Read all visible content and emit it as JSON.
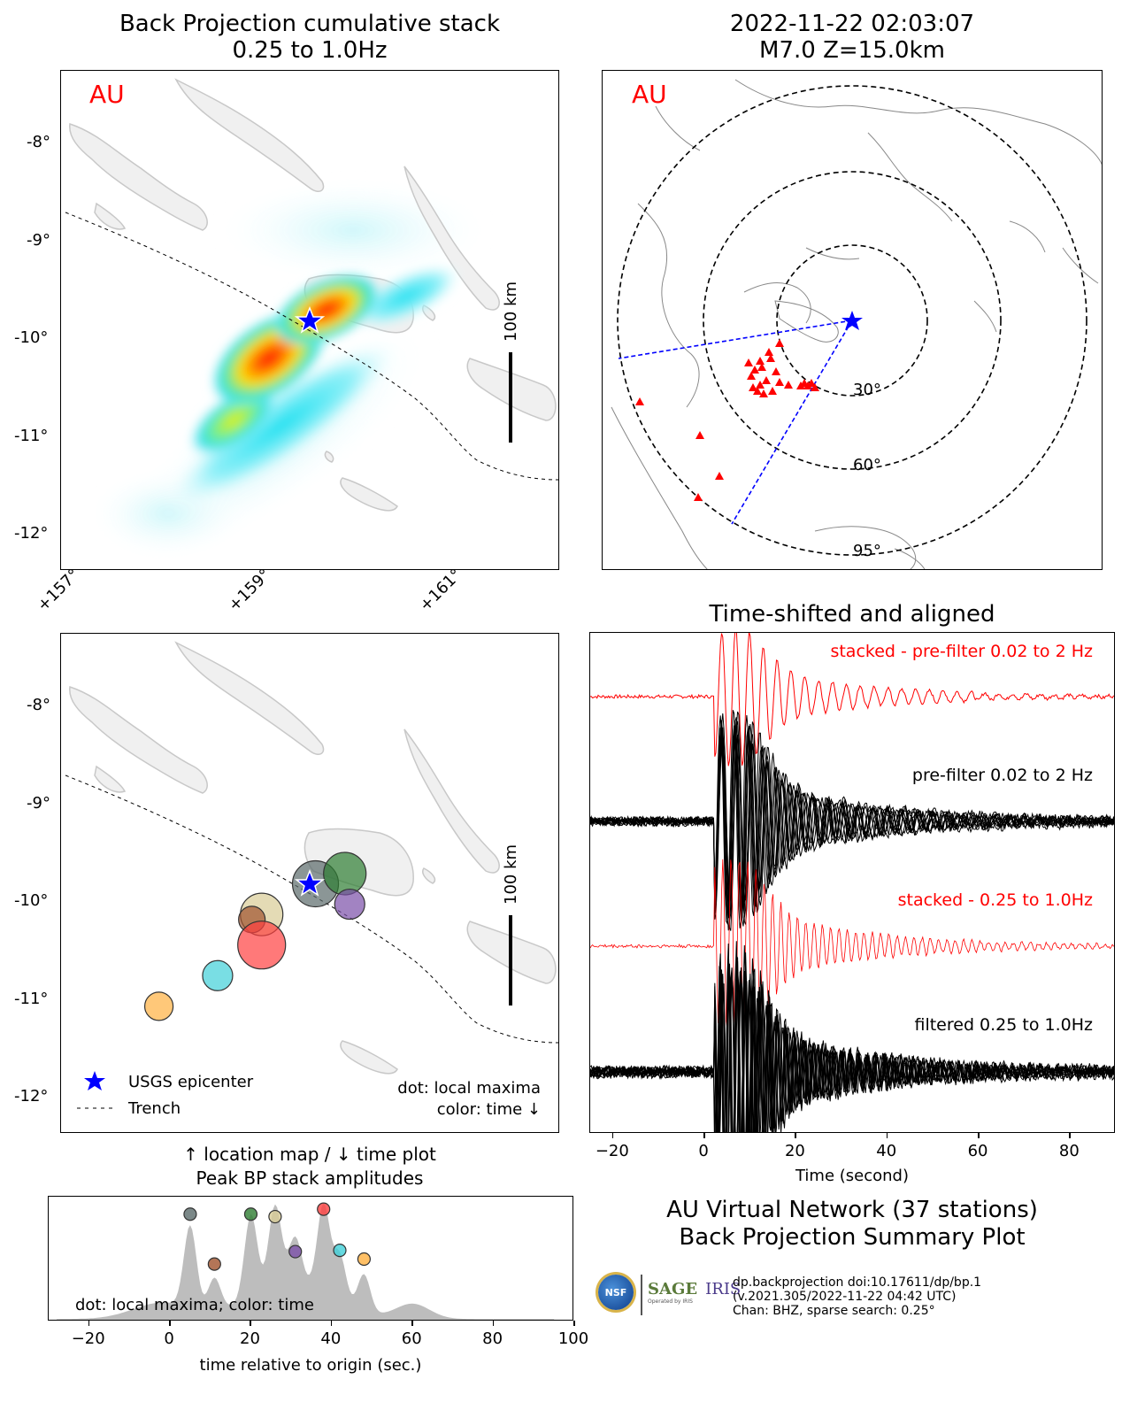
{
  "top_left": {
    "title_line1": "Back Projection cumulative stack",
    "title_line2": "0.25 to 1.0Hz",
    "network_tag": "AU",
    "scale_label": "100 km"
  },
  "top_right": {
    "title_line1": "2022-11-22 02:03:07",
    "title_line2": "M7.0 Z=15.0km",
    "network_tag": "AU",
    "ring_labels": [
      "30°",
      "60°",
      "95°"
    ]
  },
  "lat_ticks": [
    "-8°",
    "-9°",
    "-10°",
    "-11°",
    "-12°"
  ],
  "lon_ticks": [
    "+157°",
    "+159°",
    "+161°"
  ],
  "mid_left": {
    "scale_label": "100 km",
    "legend_epicenter": "USGS epicenter",
    "legend_trench": "Trench",
    "note_line1": "dot: local maxima",
    "note_line2": "color: time ↓",
    "caption_line1": "↑ location map / ↓ time plot",
    "caption_line2": "Peak BP stack amplitudes"
  },
  "waveforms": {
    "title": "Time-shifted and aligned",
    "trace_labels": [
      "stacked - pre-filter 0.02 to 2 Hz",
      "pre-filter 0.02 to 2 Hz",
      "stacked - 0.25 to 1.0Hz",
      "filtered 0.25 to 1.0Hz"
    ],
    "xlabel": "Time (second)",
    "xticks": [
      "−20",
      "0",
      "20",
      "40",
      "60",
      "80"
    ]
  },
  "summary": {
    "line1": "AU Virtual Network (37 stations)",
    "line2": "Back Projection Summary Plot"
  },
  "footer": {
    "logo_nsf": "NSF",
    "logo_sage": "SAGE",
    "logo_iris": "IRIS",
    "logo_sub": "Operated by IRIS",
    "line1": "dp.backprojection doi:10.17611/dp/bp.1",
    "line2": "(v.2021.305/2022-11-22 04:42 UTC)",
    "line3": "Chan: BHZ, sparse search: 0.25°"
  },
  "colors": {
    "epicenter": "#0000ff",
    "accent": "#ff0000",
    "land": "#f0f0f0",
    "coast": "#c8c8c8"
  },
  "chart_data": [
    {
      "type": "heatmap",
      "title": "Back Projection cumulative stack 0.25 to 1.0Hz",
      "xlim": [
        156.9,
        162.0
      ],
      "ylim": [
        -12.3,
        -7.4
      ],
      "epicenter": {
        "lon": 159.5,
        "lat": -9.83
      },
      "peaks": [
        {
          "lon": 159.7,
          "lat": -9.8,
          "value": 1.0
        },
        {
          "lon": 159.05,
          "lat": -10.2,
          "value": 0.95
        },
        {
          "lon": 158.5,
          "lat": -10.6,
          "value": 0.55
        },
        {
          "lon": 157.9,
          "lat": -11.0,
          "value": 0.4
        },
        {
          "lon": 160.3,
          "lat": -9.4,
          "value": 0.35
        }
      ]
    },
    {
      "type": "scatter",
      "title": "2022-11-22 02:03:07 M7.0 Z=15.0km",
      "ring_distances_deg": [
        30,
        60,
        95
      ]
    },
    {
      "type": "scatter",
      "title": "location map",
      "xlim": [
        156.9,
        162.0
      ],
      "ylim": [
        -12.3,
        -7.4
      ],
      "points": [
        {
          "lon": 159.5,
          "lat": -9.85,
          "color": "#5a6a6a",
          "size": 26
        },
        {
          "lon": 159.8,
          "lat": -9.75,
          "color": "#2e7d32",
          "size": 24
        },
        {
          "lon": 159.85,
          "lat": -10.05,
          "color": "#7b4fa8",
          "size": 17
        },
        {
          "lon": 158.95,
          "lat": -10.15,
          "color": "#d8cc96",
          "size": 24
        },
        {
          "lon": 158.85,
          "lat": -10.2,
          "color": "#a0522d",
          "size": 15
        },
        {
          "lon": 158.95,
          "lat": -10.45,
          "color": "#ff4040",
          "size": 27
        },
        {
          "lon": 158.5,
          "lat": -10.75,
          "color": "#40d0d8",
          "size": 17
        },
        {
          "lon": 157.9,
          "lat": -11.05,
          "color": "#ffb040",
          "size": 16
        }
      ]
    },
    {
      "type": "area",
      "title": "Peak BP stack amplitudes",
      "xlabel": "time relative to origin (sec.)",
      "xlim": [
        -30,
        100
      ],
      "xticks": [
        -20,
        0,
        20,
        40,
        60,
        80,
        100
      ],
      "annotation": "dot: local maxima; color: time",
      "peak_dots": [
        {
          "t": 5,
          "v": 0.86,
          "color": "#5a6a6a"
        },
        {
          "t": 11,
          "v": 0.46,
          "color": "#a0522d"
        },
        {
          "t": 20,
          "v": 0.86,
          "color": "#2e7d32"
        },
        {
          "t": 26,
          "v": 0.84,
          "color": "#d8cc96"
        },
        {
          "t": 31,
          "v": 0.56,
          "color": "#7b4fa8"
        },
        {
          "t": 38,
          "v": 0.9,
          "color": "#ff4040"
        },
        {
          "t": 42,
          "v": 0.57,
          "color": "#40d0d8"
        },
        {
          "t": 48,
          "v": 0.5,
          "color": "#ffb040"
        }
      ]
    },
    {
      "type": "line",
      "title": "Time-shifted and aligned",
      "xlabel": "Time (second)",
      "xlim": [
        -25,
        90
      ]
    }
  ]
}
